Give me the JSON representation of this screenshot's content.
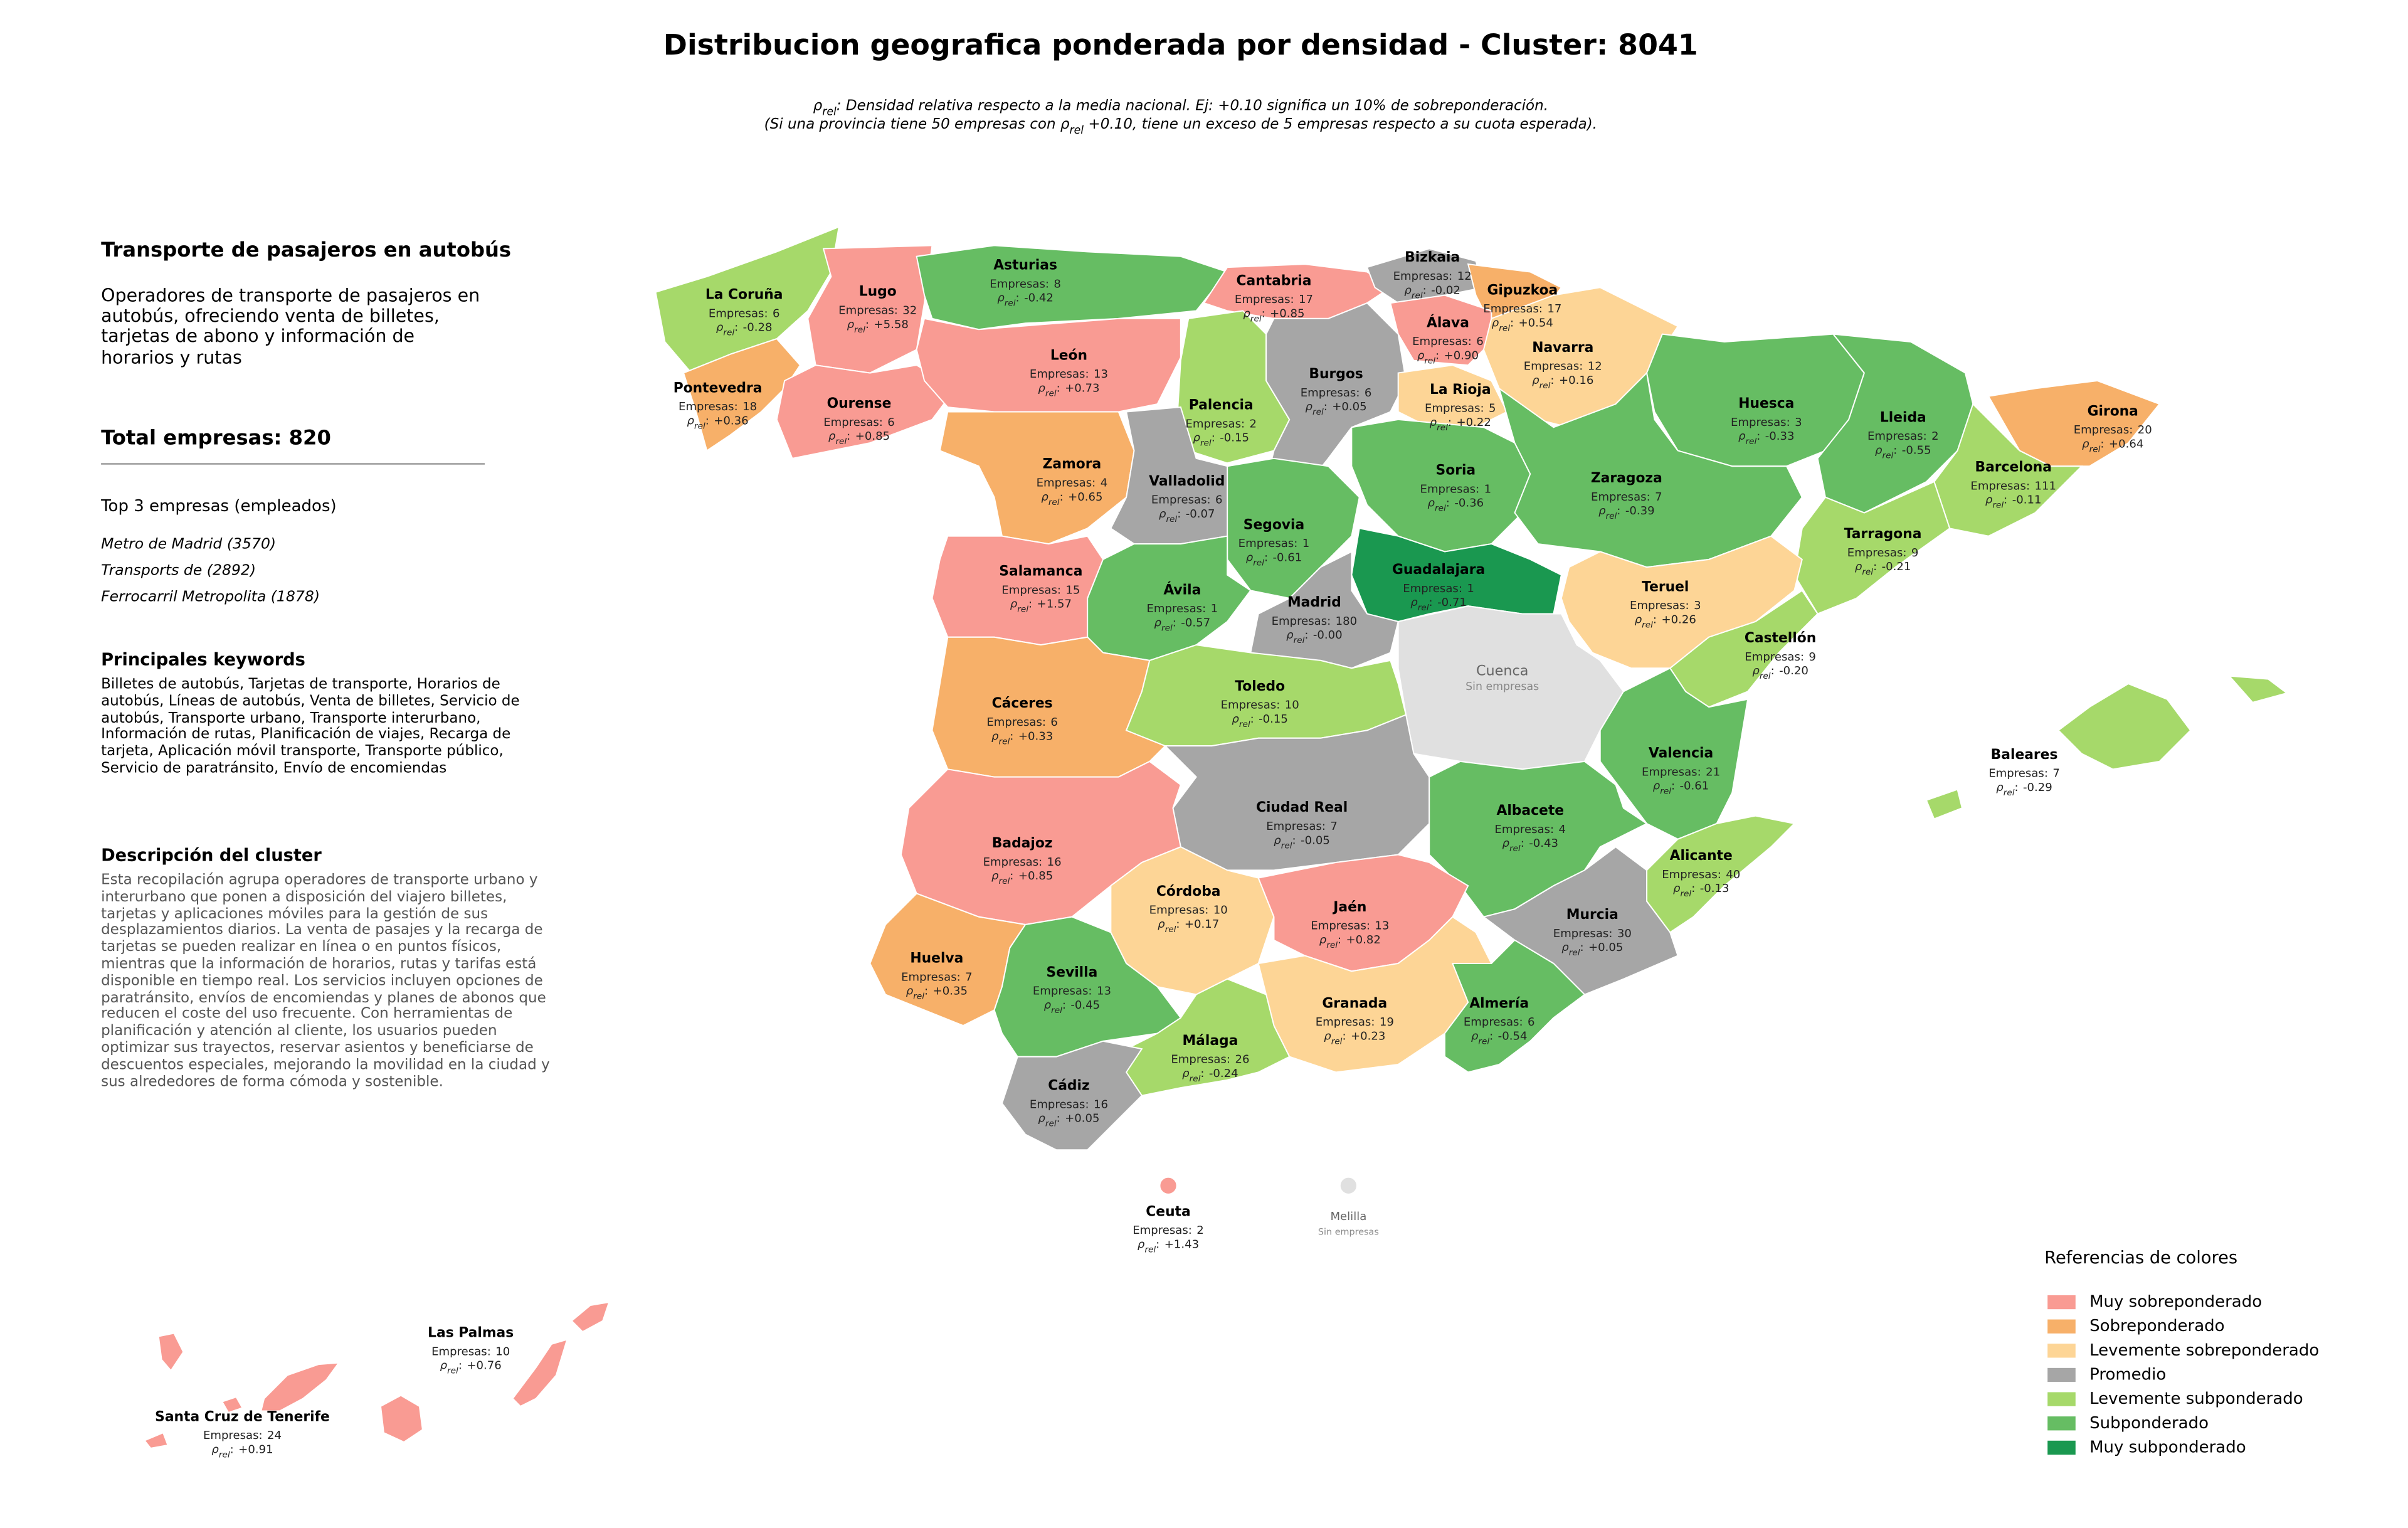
{
  "map": {
    "title": "Distribucion geografica ponderada por densidad - Cluster: 8041",
    "subtitle": [
      [
        {
          "text": "ρ"
        },
        {
          "text": "rel",
          "subscript": true
        },
        {
          "text": ": Densidad relativa respecto a la media nacional. Ej: +0.10 significa un 10% de sobreponderación."
        }
      ],
      [
        {
          "text": "(Si una provincia tiene 50 empresas con ρ"
        },
        {
          "text": "rel",
          "subscript": true
        },
        {
          "text": " +0.10, tiene un exceso de 5 empresas respecto a su cuota esperada)."
        }
      ]
    ],
    "empresas_label": "Empresas:",
    "rho_symbol": "ρ",
    "rho_subscript": "rel",
    "rho_suffix": ":",
    "no_data_label": "Sin empresas",
    "no_data_color": "#e0e0e0",
    "provinces": [
      {
        "name": "La Coruña",
        "empresas": 6,
        "rho": -0.28,
        "rho_label": "-0.28",
        "color": "#a6d96a"
      },
      {
        "name": "Lugo",
        "empresas": 32,
        "rho": 5.58,
        "rho_label": "+5.58",
        "color": "#f99b93"
      },
      {
        "name": "Asturias",
        "empresas": 8,
        "rho": -0.42,
        "rho_label": "-0.42",
        "color": "#66bd63"
      },
      {
        "name": "Cantabria",
        "empresas": 17,
        "rho": 0.85,
        "rho_label": "+0.85",
        "color": "#f99b93"
      },
      {
        "name": "Bizkaia",
        "empresas": 12,
        "rho": -0.02,
        "rho_label": "-0.02",
        "color": "#a6a6a6"
      },
      {
        "name": "Gipuzkoa",
        "empresas": 17,
        "rho": 0.54,
        "rho_label": "+0.54",
        "color": "#f7b069"
      },
      {
        "name": "Álava",
        "empresas": 6,
        "rho": 0.9,
        "rho_label": "+0.90",
        "color": "#f99b93"
      },
      {
        "name": "Navarra",
        "empresas": 12,
        "rho": 0.16,
        "rho_label": "+0.16",
        "color": "#fdd596"
      },
      {
        "name": "Pontevedra",
        "empresas": 18,
        "rho": 0.36,
        "rho_label": "+0.36",
        "color": "#f7b069"
      },
      {
        "name": "Ourense",
        "empresas": 6,
        "rho": 0.85,
        "rho_label": "+0.85",
        "color": "#f99b93"
      },
      {
        "name": "León",
        "empresas": 13,
        "rho": 0.73,
        "rho_label": "+0.73",
        "color": "#f99b93"
      },
      {
        "name": "Palencia",
        "empresas": 2,
        "rho": -0.15,
        "rho_label": "-0.15",
        "color": "#a6d96a"
      },
      {
        "name": "Burgos",
        "empresas": 6,
        "rho": 0.05,
        "rho_label": "+0.05",
        "color": "#a6a6a6"
      },
      {
        "name": "La Rioja",
        "empresas": 5,
        "rho": 0.22,
        "rho_label": "+0.22",
        "color": "#fdd596"
      },
      {
        "name": "Huesca",
        "empresas": 3,
        "rho": -0.33,
        "rho_label": "-0.33",
        "color": "#66bd63"
      },
      {
        "name": "Lleida",
        "empresas": 2,
        "rho": -0.55,
        "rho_label": "-0.55",
        "color": "#66bd63"
      },
      {
        "name": "Girona",
        "empresas": 20,
        "rho": 0.64,
        "rho_label": "+0.64",
        "color": "#f7b069"
      },
      {
        "name": "Barcelona",
        "empresas": 111,
        "rho": -0.11,
        "rho_label": "-0.11",
        "color": "#a6d96a"
      },
      {
        "name": "Zamora",
        "empresas": 4,
        "rho": 0.65,
        "rho_label": "+0.65",
        "color": "#f7b069"
      },
      {
        "name": "Valladolid",
        "empresas": 6,
        "rho": -0.07,
        "rho_label": "-0.07",
        "color": "#a6a6a6"
      },
      {
        "name": "Soria",
        "empresas": 1,
        "rho": -0.36,
        "rho_label": "-0.36",
        "color": "#66bd63"
      },
      {
        "name": "Zaragoza",
        "empresas": 7,
        "rho": -0.39,
        "rho_label": "-0.39",
        "color": "#66bd63"
      },
      {
        "name": "Tarragona",
        "empresas": 9,
        "rho": -0.21,
        "rho_label": "-0.21",
        "color": "#a6d96a"
      },
      {
        "name": "Segovia",
        "empresas": 1,
        "rho": -0.61,
        "rho_label": "-0.61",
        "color": "#66bd63"
      },
      {
        "name": "Salamanca",
        "empresas": 15,
        "rho": 1.57,
        "rho_label": "+1.57",
        "color": "#f99b93"
      },
      {
        "name": "Guadalajara",
        "empresas": 1,
        "rho": -0.71,
        "rho_label": "-0.71",
        "color": "#1a9850"
      },
      {
        "name": "Ávila",
        "empresas": 1,
        "rho": -0.57,
        "rho_label": "-0.57",
        "color": "#66bd63"
      },
      {
        "name": "Madrid",
        "empresas": 180,
        "rho": 0,
        "rho_label": "-0.00",
        "color": "#a6a6a6"
      },
      {
        "name": "Teruel",
        "empresas": 3,
        "rho": 0.26,
        "rho_label": "+0.26",
        "color": "#fdd596"
      },
      {
        "name": "Castellón",
        "empresas": 9,
        "rho": -0.2,
        "rho_label": "-0.20",
        "color": "#a6d96a"
      },
      {
        "name": "Cuenca",
        "empresas": null,
        "rho": null
      },
      {
        "name": "Baleares",
        "empresas": 7,
        "rho": -0.29,
        "rho_label": "-0.29",
        "color": "#a6d96a"
      },
      {
        "name": "Cáceres",
        "empresas": 6,
        "rho": 0.33,
        "rho_label": "+0.33",
        "color": "#f7b069"
      },
      {
        "name": "Toledo",
        "empresas": 10,
        "rho": -0.15,
        "rho_label": "-0.15",
        "color": "#a6d96a"
      },
      {
        "name": "Valencia",
        "empresas": 21,
        "rho": -0.61,
        "rho_label": "-0.61",
        "color": "#66bd63"
      },
      {
        "name": "Ciudad Real",
        "empresas": 7,
        "rho": -0.05,
        "rho_label": "-0.05",
        "color": "#a6a6a6"
      },
      {
        "name": "Albacete",
        "empresas": 4,
        "rho": -0.43,
        "rho_label": "-0.43",
        "color": "#66bd63"
      },
      {
        "name": "Badajoz",
        "empresas": 16,
        "rho": 0.85,
        "rho_label": "+0.85",
        "color": "#f99b93"
      },
      {
        "name": "Alicante",
        "empresas": 40,
        "rho": -0.13,
        "rho_label": "-0.13",
        "color": "#a6d96a"
      },
      {
        "name": "Córdoba",
        "empresas": 10,
        "rho": 0.17,
        "rho_label": "+0.17",
        "color": "#fdd596"
      },
      {
        "name": "Jaén",
        "empresas": 13,
        "rho": 0.82,
        "rho_label": "+0.82",
        "color": "#f99b93"
      },
      {
        "name": "Murcia",
        "empresas": 30,
        "rho": 0.05,
        "rho_label": "+0.05",
        "color": "#a6a6a6"
      },
      {
        "name": "Huelva",
        "empresas": 7,
        "rho": 0.35,
        "rho_label": "+0.35",
        "color": "#f7b069"
      },
      {
        "name": "Sevilla",
        "empresas": 13,
        "rho": -0.45,
        "rho_label": "-0.45",
        "color": "#66bd63"
      },
      {
        "name": "Granada",
        "empresas": 19,
        "rho": 0.23,
        "rho_label": "+0.23",
        "color": "#fdd596"
      },
      {
        "name": "Almería",
        "empresas": 6,
        "rho": -0.54,
        "rho_label": "-0.54",
        "color": "#66bd63"
      },
      {
        "name": "Málaga",
        "empresas": 26,
        "rho": -0.24,
        "rho_label": "-0.24",
        "color": "#a6d96a"
      },
      {
        "name": "Cádiz",
        "empresas": 16,
        "rho": 0.05,
        "rho_label": "+0.05",
        "color": "#a6a6a6"
      },
      {
        "name": "Ceuta",
        "empresas": 2,
        "rho": 1.43,
        "rho_label": "+1.43",
        "color": "#f99b93"
      },
      {
        "name": "Melilla",
        "empresas": null,
        "rho": null
      },
      {
        "name": "Las Palmas",
        "empresas": 10,
        "rho": 0.76,
        "rho_label": "+0.76",
        "color": "#f99b93"
      },
      {
        "name": "Santa Cruz de Tenerife",
        "empresas": 24,
        "rho": 0.91,
        "rho_label": "+0.91",
        "color": "#f99b93"
      }
    ],
    "legend": {
      "title": "Referencias de colores",
      "items": [
        {
          "name": "Muy sobreponderado",
          "color": "#f99b93"
        },
        {
          "name": "Sobreponderado",
          "color": "#f7b069"
        },
        {
          "name": "Levemente sobreponderado",
          "color": "#fdd596"
        },
        {
          "name": "Promedio",
          "color": "#a6a6a6"
        },
        {
          "name": "Levemente subponderado",
          "color": "#a6d96a"
        },
        {
          "name": "Subponderado",
          "color": "#66bd63"
        },
        {
          "name": "Muy subponderado",
          "color": "#1a9850"
        }
      ]
    }
  },
  "panel": {
    "heading": "Transporte de pasajeros en autobús",
    "description": "Operadores de transporte de pasajeros en autobús, ofreciendo venta de billetes, tarjetas de abono y información de horarios y rutas",
    "total_label": "Total empresas:",
    "total": 820,
    "top_title": "Top 3 empresas (empleados)",
    "top": [
      "Metro de Madrid (3570)",
      "Transports de (2892)",
      "Ferrocarril Metropolita (1878)"
    ],
    "keywords_title": "Principales keywords",
    "keywords": "Billetes de autobús, Tarjetas de transporte, Horarios de autobús, Líneas de autobús, Venta de billetes, Servicio de autobús, Transporte urbano, Transporte interurbano, Información de rutas, Planificación de viajes, Recarga de tarjeta, Aplicación móvil transporte, Transporte público, Servicio de paratránsito, Envío de encomiendas",
    "cluster_title": "Descripción del cluster",
    "cluster_text": "Esta recopilación agrupa operadores de transporte urbano y interurbano que ponen a disposición del viajero billetes, tarjetas y aplicaciones móviles para la gestión de sus desplazamientos diarios. La venta de pasajes y la recarga de tarjetas se pueden realizar en línea o en puntos físicos, mientras que la información de horarios, rutas y tarifas está disponible en tiempo real. Los servicios incluyen opciones de paratránsito, envíos de encomiendas y planes de abonos que reducen el coste del uso frecuente. Con herramientas de planificación y atención al cliente, los usuarios pueden optimizar sus trayectos, reservar asientos y beneficiarse de descuentos especiales, mejorando la movilidad en la ciudad y sus alrededores de forma cómoda y sostenible."
  }
}
